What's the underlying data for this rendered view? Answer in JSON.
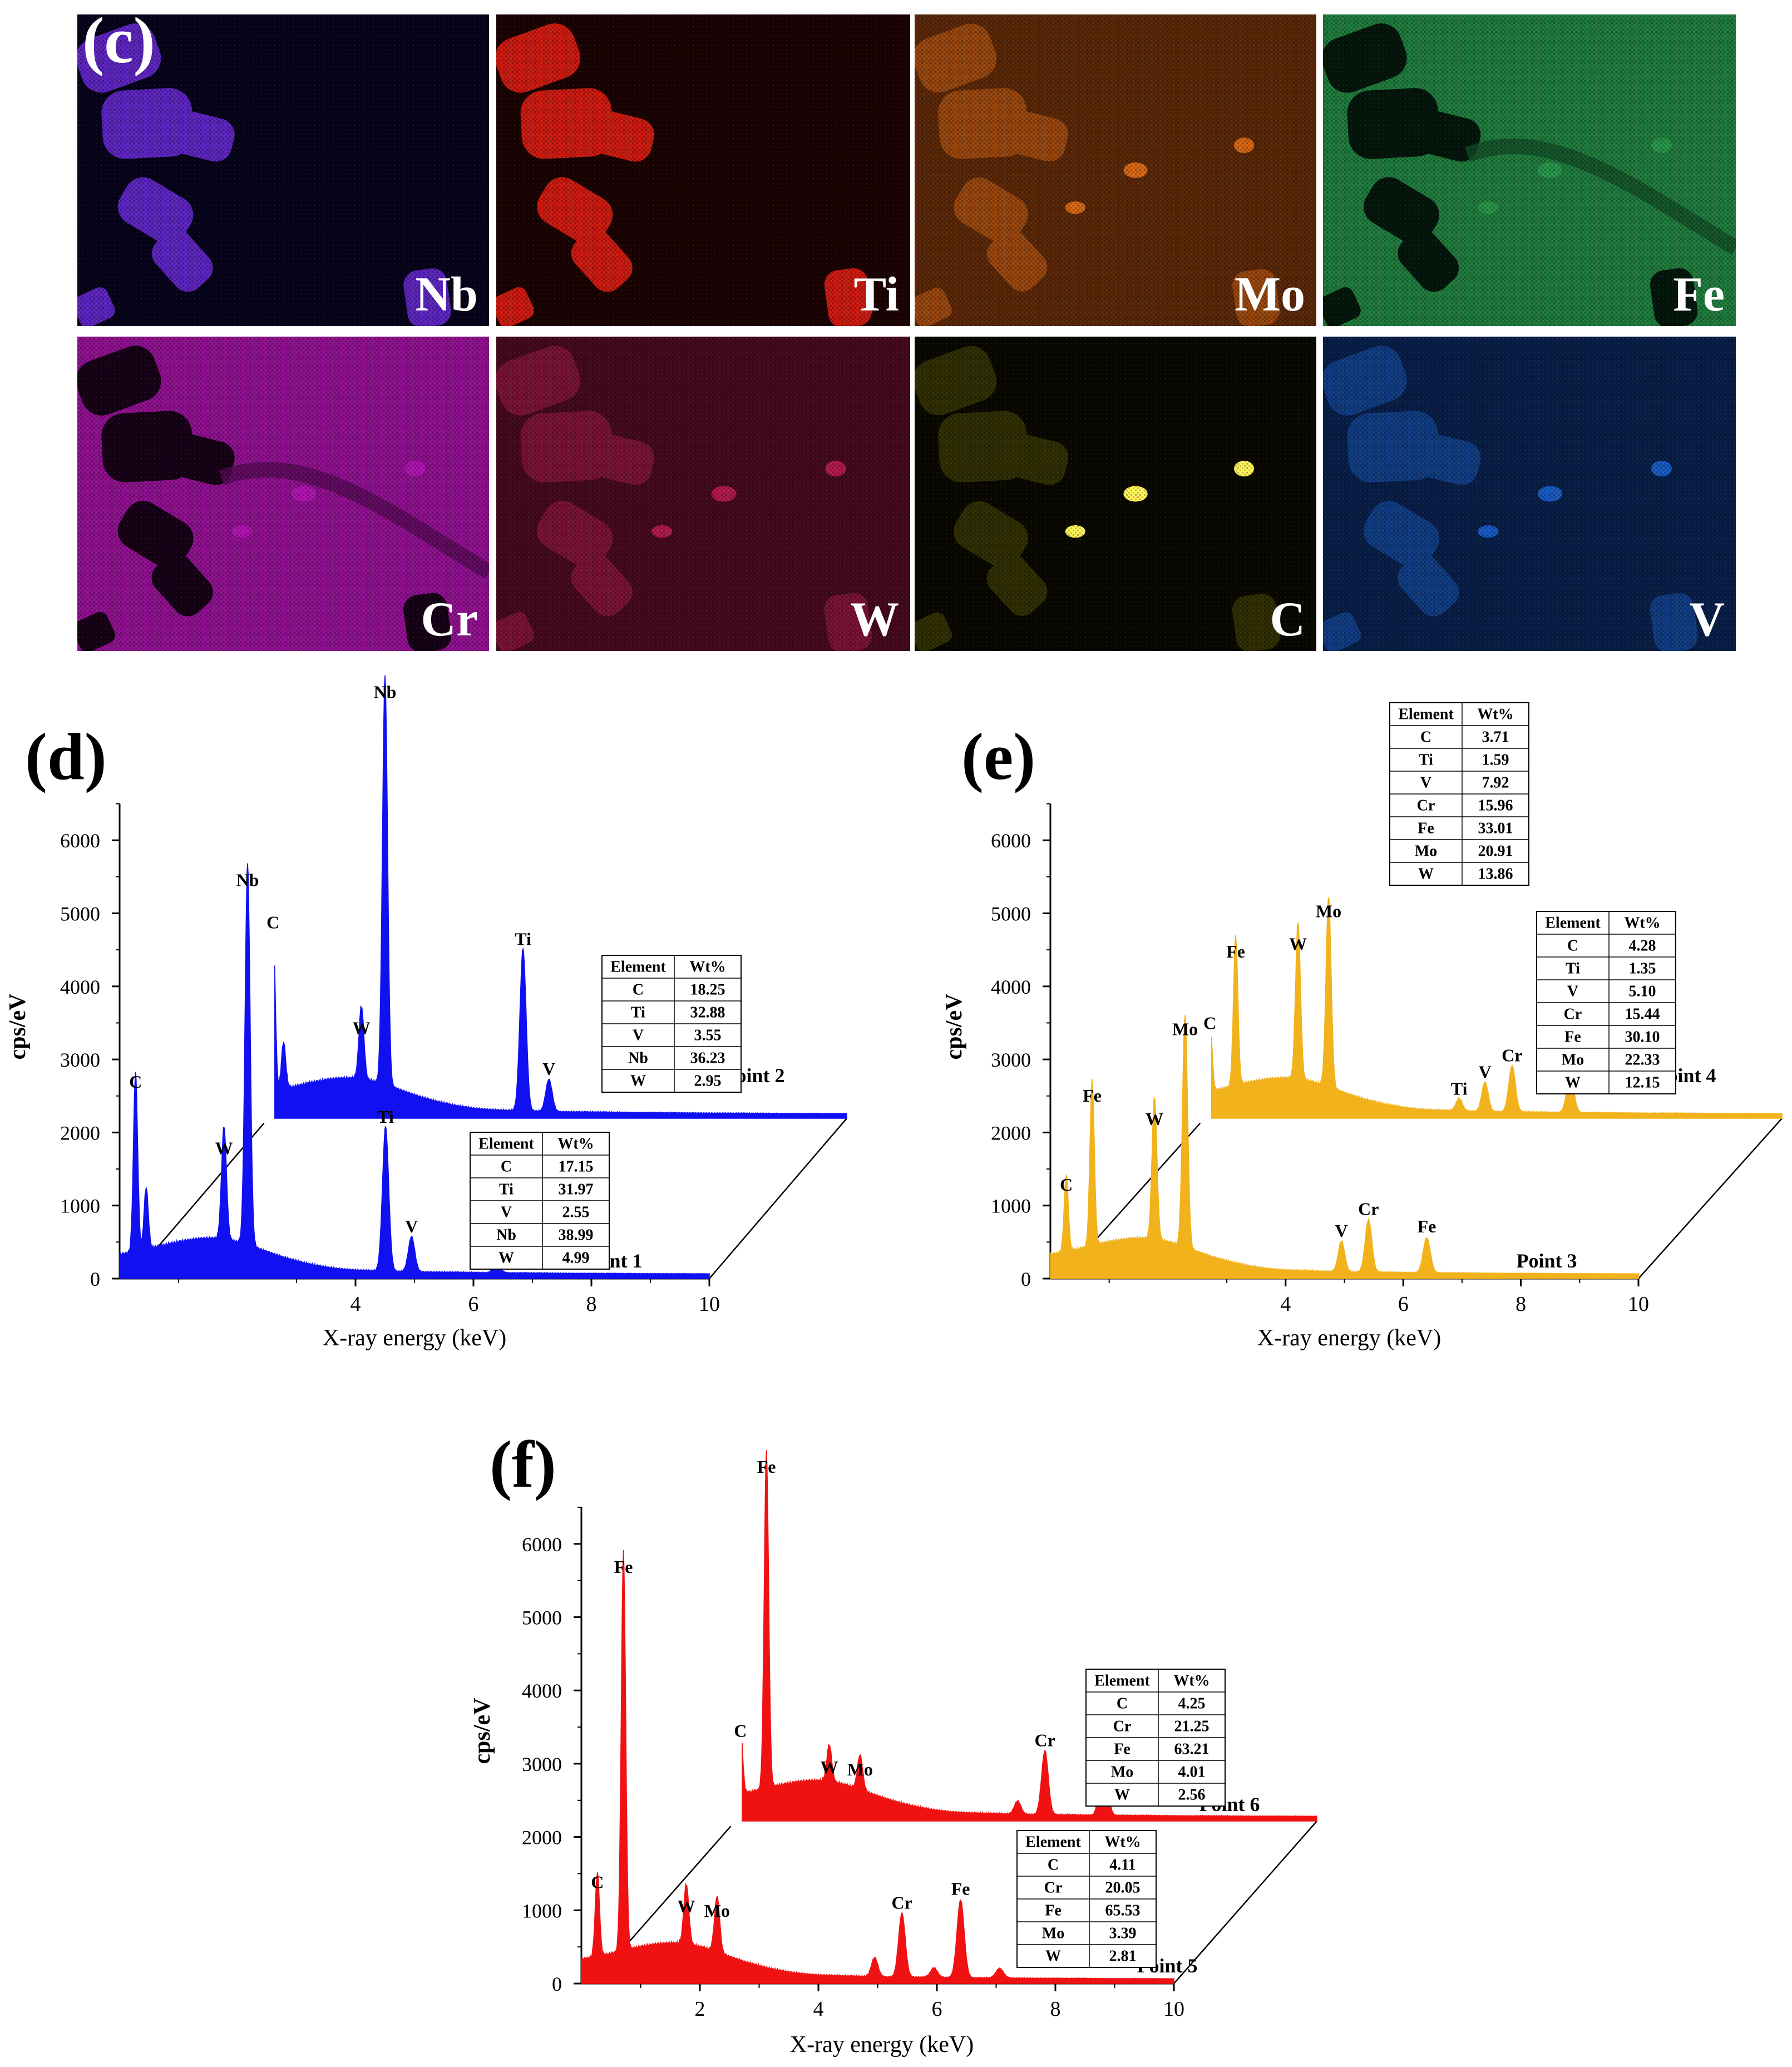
{
  "maps": {
    "panel_label": "(c)",
    "tiles": [
      {
        "label": "Nb",
        "color": "#6a2ad8",
        "dark": "#06031a",
        "mode": "blobs"
      },
      {
        "label": "Ti",
        "color": "#e81e12",
        "dark": "#1a0302",
        "mode": "blobs"
      },
      {
        "label": "Mo",
        "color": "#ff7a18",
        "dark": "#2a1004",
        "mode": "mid"
      },
      {
        "label": "Fe",
        "color": "#2fb057",
        "dark": "#052010",
        "mode": "matrix"
      },
      {
        "label": "Cr",
        "color": "#d018d0",
        "dark": "#200220",
        "mode": "matrix"
      },
      {
        "label": "W",
        "color": "#d0205a",
        "dark": "#1c030a",
        "mode": "mid"
      },
      {
        "label": "C",
        "color": "#c8c010",
        "dark": "#090800",
        "mode": "sparse"
      },
      {
        "label": "V",
        "color": "#1e6ee6",
        "dark": "#02071a",
        "mode": "mid"
      }
    ]
  },
  "chart_data": [
    {
      "type": "line",
      "panel_label": "(d)",
      "xlabel": "X-ray energy (keV)",
      "ylabel": "cps/eV",
      "x_ticks": [
        "4",
        "6",
        "8",
        "10"
      ],
      "y_ticks": [
        "0",
        "1000",
        "2000",
        "3000",
        "4000",
        "5000",
        "6000"
      ],
      "xlim": [
        0,
        10
      ],
      "ylim": [
        0,
        6500
      ],
      "color": "#1010f0",
      "series": [
        {
          "name": "Point 1",
          "peaks": [
            {
              "label": "C",
              "x": 0.27,
              "y": 2460,
              "shown": true
            },
            {
              "label": "",
              "x": 0.45,
              "y": 850,
              "shown": false
            },
            {
              "label": "W",
              "x": 1.77,
              "y": 1550,
              "shown": true
            },
            {
              "label": "Nb",
              "x": 2.17,
              "y": 5220,
              "shown": true
            },
            {
              "label": "Ti",
              "x": 4.51,
              "y": 1980,
              "shown": true
            },
            {
              "label": "V",
              "x": 4.95,
              "y": 480,
              "shown": true
            },
            {
              "label": "",
              "x": 6.4,
              "y": 110,
              "shown": false
            }
          ],
          "table": {
            "header": [
              "Element",
              "Wt%"
            ],
            "rows": [
              [
                "C",
                "17.15"
              ],
              [
                "Ti",
                "31.97"
              ],
              [
                "V",
                "2.55"
              ],
              [
                "Nb",
                "38.99"
              ],
              [
                "W",
                "4.99"
              ]
            ]
          }
        },
        {
          "name": "Point 2",
          "peaks": [
            {
              "label": "C",
              "x": 0.27,
              "y": 2450,
              "shown": true
            },
            {
              "label": "",
              "x": 0.45,
              "y": 650,
              "shown": false
            },
            {
              "label": "W",
              "x": 1.77,
              "y": 1000,
              "shown": true
            },
            {
              "label": "Nb",
              "x": 2.17,
              "y": 5600,
              "shown": true
            },
            {
              "label": "Ti",
              "x": 4.51,
              "y": 2220,
              "shown": true
            },
            {
              "label": "V",
              "x": 4.95,
              "y": 440,
              "shown": true
            }
          ],
          "table": {
            "header": [
              "Element",
              "Wt%"
            ],
            "rows": [
              [
                "C",
                "18.25"
              ],
              [
                "Ti",
                "32.88"
              ],
              [
                "V",
                "3.55"
              ],
              [
                "Nb",
                "36.23"
              ],
              [
                "W",
                "2.95"
              ]
            ]
          }
        }
      ]
    },
    {
      "type": "line",
      "panel_label": "(e)",
      "xlabel": "X-ray energy (keV)",
      "ylabel": "cps/eV",
      "x_ticks": [
        "4",
        "6",
        "8",
        "10"
      ],
      "y_ticks": [
        "0",
        "1000",
        "2000",
        "3000",
        "4000",
        "5000",
        "6000"
      ],
      "xlim": [
        0,
        10
      ],
      "ylim": [
        0,
        6500
      ],
      "color": "#f2b21c",
      "series": [
        {
          "name": "Point 3",
          "peaks": [
            {
              "label": "C",
              "x": 0.27,
              "y": 1050,
              "shown": true
            },
            {
              "label": "Fe",
              "x": 0.71,
              "y": 2270,
              "shown": true
            },
            {
              "label": "W",
              "x": 1.77,
              "y": 1950,
              "shown": true
            },
            {
              "label": "Mo",
              "x": 2.29,
              "y": 3180,
              "shown": true
            },
            {
              "label": "V",
              "x": 4.95,
              "y": 420,
              "shown": true
            },
            {
              "label": "Cr",
              "x": 5.41,
              "y": 720,
              "shown": true
            },
            {
              "label": "Fe",
              "x": 6.4,
              "y": 480,
              "shown": true
            }
          ],
          "table": {
            "header": [
              "Element",
              "Wt%"
            ],
            "rows": [
              [
                "C",
                "4.28"
              ],
              [
                "Ti",
                "1.35"
              ],
              [
                "V",
                "5.10"
              ],
              [
                "Cr",
                "15.44"
              ],
              [
                "Fe",
                "30.10"
              ],
              [
                "Mo",
                "22.33"
              ],
              [
                "W",
                "12.15"
              ]
            ]
          }
        },
        {
          "name": "Point 4",
          "peaks": [
            {
              "label": "C",
              "x": 0.27,
              "y": 1070,
              "shown": true
            },
            {
              "label": "Fe",
              "x": 0.71,
              "y": 2050,
              "shown": true
            },
            {
              "label": "W",
              "x": 1.77,
              "y": 2150,
              "shown": true
            },
            {
              "label": "Mo",
              "x": 2.29,
              "y": 2600,
              "shown": true
            },
            {
              "label": "Ti",
              "x": 4.51,
              "y": 170,
              "shown": true
            },
            {
              "label": "V",
              "x": 4.95,
              "y": 400,
              "shown": true
            },
            {
              "label": "Cr",
              "x": 5.41,
              "y": 630,
              "shown": true
            },
            {
              "label": "Fe",
              "x": 6.4,
              "y": 510,
              "shown": true
            }
          ],
          "table": {
            "header": [
              "Element",
              "Wt%"
            ],
            "rows": [
              [
                "C",
                "3.71"
              ],
              [
                "Ti",
                "1.59"
              ],
              [
                "V",
                "7.92"
              ],
              [
                "Cr",
                "15.96"
              ],
              [
                "Fe",
                "33.01"
              ],
              [
                "Mo",
                "20.91"
              ],
              [
                "W",
                "13.86"
              ]
            ]
          }
        }
      ]
    },
    {
      "type": "line",
      "panel_label": "(f)",
      "xlabel": "X-ray energy (keV)",
      "ylabel": "cps/eV",
      "x_ticks": [
        "2",
        "4",
        "6",
        "8",
        "10"
      ],
      "y_ticks": [
        "0",
        "1000",
        "2000",
        "3000",
        "4000",
        "5000",
        "6000"
      ],
      "xlim": [
        0,
        10
      ],
      "ylim": [
        0,
        6500
      ],
      "color": "#f01212",
      "series": [
        {
          "name": "Point 5",
          "peaks": [
            {
              "label": "C",
              "x": 0.27,
              "y": 1150,
              "shown": true
            },
            {
              "label": "Fe",
              "x": 0.71,
              "y": 5450,
              "shown": true
            },
            {
              "label": "W",
              "x": 1.77,
              "y": 820,
              "shown": true
            },
            {
              "label": "Mo",
              "x": 2.29,
              "y": 760,
              "shown": true
            },
            {
              "label": "",
              "x": 4.95,
              "y": 260,
              "shown": false
            },
            {
              "label": "Cr",
              "x": 5.41,
              "y": 870,
              "shown": true
            },
            {
              "label": "",
              "x": 5.95,
              "y": 130,
              "shown": false
            },
            {
              "label": "Fe",
              "x": 6.4,
              "y": 1060,
              "shown": true
            },
            {
              "label": "",
              "x": 7.06,
              "y": 130,
              "shown": false
            }
          ],
          "table": {
            "header": [
              "Element",
              "Wt%"
            ],
            "rows": [
              [
                "C",
                "4.11"
              ],
              [
                "Cr",
                "20.05"
              ],
              [
                "Fe",
                "65.53"
              ],
              [
                "Mo",
                "3.39"
              ],
              [
                "W",
                "2.81"
              ]
            ]
          }
        },
        {
          "name": "Point 6",
          "peaks": [
            {
              "label": "C",
              "x": 0.27,
              "y": 1000,
              "shown": true
            },
            {
              "label": "Fe",
              "x": 0.71,
              "y": 4600,
              "shown": true
            },
            {
              "label": "W",
              "x": 1.77,
              "y": 500,
              "shown": true
            },
            {
              "label": "Mo",
              "x": 2.29,
              "y": 470,
              "shown": true
            },
            {
              "label": "",
              "x": 4.95,
              "y": 180,
              "shown": false
            },
            {
              "label": "Cr",
              "x": 5.41,
              "y": 870,
              "shown": true
            },
            {
              "label": "Fe",
              "x": 6.4,
              "y": 1050,
              "shown": true
            }
          ],
          "table": {
            "header": [
              "Element",
              "Wt%"
            ],
            "rows": [
              [
                "C",
                "4.25"
              ],
              [
                "Cr",
                "21.25"
              ],
              [
                "Fe",
                "63.21"
              ],
              [
                "Mo",
                "4.01"
              ],
              [
                "W",
                "2.56"
              ]
            ]
          }
        }
      ]
    }
  ]
}
